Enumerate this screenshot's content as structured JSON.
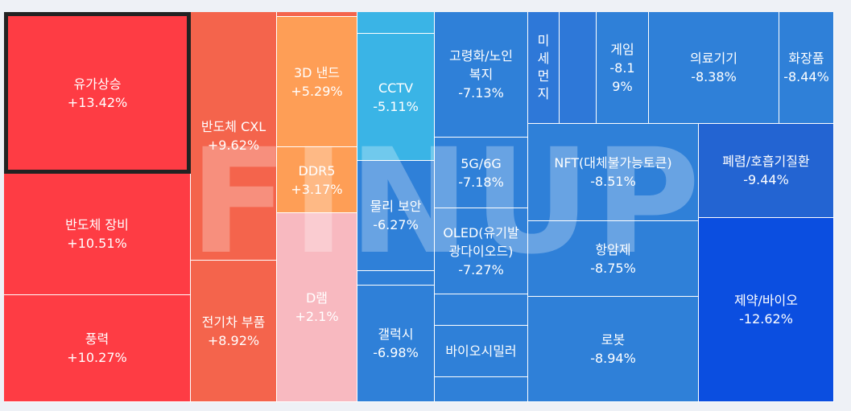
{
  "watermark": "FINUP",
  "colors": {
    "pos_strong": "#fe3c44",
    "pos_mid": "#f4644c",
    "pos_orange": "#fe9e56",
    "pos_light": "#f8b9c0",
    "neg_light": "#3ab4e6",
    "neg_mid": "#2f80d8",
    "neg_deep": "#2364d2",
    "neg_strongest": "#0b4ee0"
  },
  "chart_data": {
    "type": "treemap",
    "title": "",
    "items": [
      {
        "name": "유가상승",
        "value": 13.42,
        "label": "+13.42%",
        "selected": true
      },
      {
        "name": "반도체 장비",
        "value": 10.51,
        "label": "+10.51%"
      },
      {
        "name": "풍력",
        "value": 10.27,
        "label": "+10.27%"
      },
      {
        "name": "반도체 CXL",
        "value": 9.62,
        "label": "+9.62%"
      },
      {
        "name": "전기차 부품",
        "value": 8.92,
        "label": "+8.92%"
      },
      {
        "name": "3D 낸드",
        "value": 5.29,
        "label": "+5.29%"
      },
      {
        "name": "DDR5",
        "value": 3.17,
        "label": "+3.17%"
      },
      {
        "name": "D램",
        "value": 2.1,
        "label": "+2.1%"
      },
      {
        "name": "CCTV",
        "value": -5.11,
        "label": "-5.11%"
      },
      {
        "name": "물리 보안",
        "value": -6.27,
        "label": "-6.27%"
      },
      {
        "name": "갤럭시",
        "value": -6.98,
        "label": "-6.98%"
      },
      {
        "name": "고령화/노인\n복지",
        "value": -7.13,
        "label": "-7.13%"
      },
      {
        "name": "5G/6G",
        "value": -7.18,
        "label": "-7.18%"
      },
      {
        "name": "OLED(유기발\n광다이오드)",
        "value": -7.27,
        "label": "-7.27%"
      },
      {
        "name": "바이오시밀러",
        "value": null,
        "label": ""
      },
      {
        "name": "미\n세\n먼\n지",
        "value": null,
        "label": ""
      },
      {
        "name": "게임",
        "value": -8.19,
        "label": "-8.1\n9%"
      },
      {
        "name": "의료기기",
        "value": -8.38,
        "label": "-8.38%"
      },
      {
        "name": "화장품",
        "value": -8.44,
        "label": "-8.44%"
      },
      {
        "name": "NFT(대체불가능토큰)",
        "value": -8.51,
        "label": "-8.51%"
      },
      {
        "name": "폐렴/호흡기질환",
        "value": -9.44,
        "label": "-9.44%"
      },
      {
        "name": "항암제",
        "value": -8.75,
        "label": "-8.75%"
      },
      {
        "name": "로봇",
        "value": -8.94,
        "label": "-8.94%"
      },
      {
        "name": "제약/바이오",
        "value": -12.62,
        "label": "-12.62%"
      },
      {
        "name": "",
        "value": null,
        "label": ""
      },
      {
        "name": "",
        "value": null,
        "label": ""
      },
      {
        "name": "",
        "value": null,
        "label": ""
      },
      {
        "name": "",
        "value": null,
        "label": ""
      },
      {
        "name": "",
        "value": null,
        "label": ""
      },
      {
        "name": "",
        "value": null,
        "label": ""
      },
      {
        "name": "",
        "value": null,
        "label": ""
      },
      {
        "name": "",
        "value": null,
        "label": ""
      }
    ]
  }
}
